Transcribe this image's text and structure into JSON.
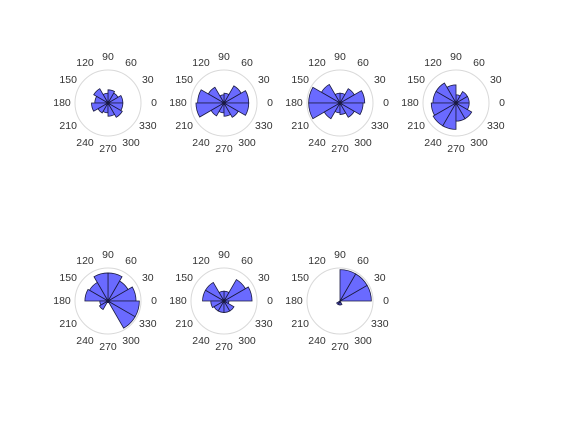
{
  "colors": {
    "sector_fill": "#6a6aff",
    "sector_stroke": "#1a1a40",
    "grid_circle": "#d9d9d9",
    "tick_text": "#333333",
    "background": "#ffffff"
  },
  "chart_data": [
    {
      "type": "polar-rose",
      "title": "",
      "angle_unit": "degrees",
      "angle_ticks": [
        "0",
        "30",
        "60",
        "90",
        "120",
        "150",
        "180",
        "210",
        "240",
        "270",
        "300",
        "330"
      ],
      "bin_width": 30,
      "r_max": 1.0,
      "grid": true,
      "bins": [
        {
          "start": 0,
          "end": 30,
          "r": 0.45
        },
        {
          "start": 30,
          "end": 60,
          "r": 0.35
        },
        {
          "start": 60,
          "end": 90,
          "r": 0.4
        },
        {
          "start": 90,
          "end": 120,
          "r": 0.3
        },
        {
          "start": 120,
          "end": 150,
          "r": 0.5
        },
        {
          "start": 150,
          "end": 180,
          "r": 0.4
        },
        {
          "start": 180,
          "end": 210,
          "r": 0.5
        },
        {
          "start": 210,
          "end": 240,
          "r": 0.35
        },
        {
          "start": 240,
          "end": 270,
          "r": 0.3
        },
        {
          "start": 270,
          "end": 300,
          "r": 0.4
        },
        {
          "start": 300,
          "end": 330,
          "r": 0.5
        },
        {
          "start": 330,
          "end": 360,
          "r": 0.45
        }
      ]
    },
    {
      "type": "polar-rose",
      "title": "",
      "angle_unit": "degrees",
      "angle_ticks": [
        "0",
        "30",
        "60",
        "90",
        "120",
        "150",
        "180",
        "210",
        "240",
        "270",
        "300",
        "330"
      ],
      "bin_width": 30,
      "r_max": 1.0,
      "grid": true,
      "bins": [
        {
          "start": 0,
          "end": 30,
          "r": 0.75
        },
        {
          "start": 30,
          "end": 60,
          "r": 0.6
        },
        {
          "start": 60,
          "end": 90,
          "r": 0.3
        },
        {
          "start": 90,
          "end": 120,
          "r": 0.25
        },
        {
          "start": 120,
          "end": 150,
          "r": 0.55
        },
        {
          "start": 150,
          "end": 180,
          "r": 0.8
        },
        {
          "start": 180,
          "end": 210,
          "r": 0.85
        },
        {
          "start": 210,
          "end": 240,
          "r": 0.45
        },
        {
          "start": 240,
          "end": 270,
          "r": 0.3
        },
        {
          "start": 270,
          "end": 300,
          "r": 0.4
        },
        {
          "start": 300,
          "end": 330,
          "r": 0.5
        },
        {
          "start": 330,
          "end": 360,
          "r": 0.75
        }
      ]
    },
    {
      "type": "polar-rose",
      "title": "",
      "angle_unit": "degrees",
      "angle_ticks": [
        "0",
        "30",
        "60",
        "90",
        "120",
        "150",
        "180",
        "210",
        "240",
        "270",
        "300",
        "330"
      ],
      "bin_width": 30,
      "r_max": 1.0,
      "grid": true,
      "bins": [
        {
          "start": 0,
          "end": 30,
          "r": 0.75
        },
        {
          "start": 30,
          "end": 60,
          "r": 0.5
        },
        {
          "start": 60,
          "end": 90,
          "r": 0.3
        },
        {
          "start": 90,
          "end": 120,
          "r": 0.3
        },
        {
          "start": 120,
          "end": 150,
          "r": 0.65
        },
        {
          "start": 150,
          "end": 180,
          "r": 0.95
        },
        {
          "start": 180,
          "end": 210,
          "r": 0.95
        },
        {
          "start": 210,
          "end": 240,
          "r": 0.55
        },
        {
          "start": 240,
          "end": 270,
          "r": 0.3
        },
        {
          "start": 270,
          "end": 300,
          "r": 0.35
        },
        {
          "start": 300,
          "end": 330,
          "r": 0.5
        },
        {
          "start": 330,
          "end": 360,
          "r": 0.7
        }
      ]
    },
    {
      "type": "polar-rose",
      "title": "",
      "angle_unit": "degrees",
      "angle_ticks": [
        "0",
        "30",
        "60",
        "90",
        "120",
        "150",
        "180",
        "210",
        "240",
        "270",
        "300",
        "330"
      ],
      "bin_width": 30,
      "r_max": 1.0,
      "grid": true,
      "bins": [
        {
          "start": 0,
          "end": 30,
          "r": 0.4
        },
        {
          "start": 30,
          "end": 60,
          "r": 0.4
        },
        {
          "start": 60,
          "end": 90,
          "r": 0.25
        },
        {
          "start": 90,
          "end": 120,
          "r": 0.55
        },
        {
          "start": 120,
          "end": 150,
          "r": 0.7
        },
        {
          "start": 150,
          "end": 180,
          "r": 0.7
        },
        {
          "start": 180,
          "end": 210,
          "r": 0.75
        },
        {
          "start": 210,
          "end": 240,
          "r": 0.8
        },
        {
          "start": 240,
          "end": 270,
          "r": 0.8
        },
        {
          "start": 270,
          "end": 300,
          "r": 0.55
        },
        {
          "start": 300,
          "end": 330,
          "r": 0.55
        },
        {
          "start": 330,
          "end": 360,
          "r": 0.4
        }
      ]
    },
    {
      "type": "polar-rose",
      "title": "",
      "angle_unit": "degrees",
      "angle_ticks": [
        "0",
        "30",
        "60",
        "90",
        "120",
        "150",
        "180",
        "210",
        "240",
        "270",
        "300",
        "330"
      ],
      "bin_width": 30,
      "r_max": 1.0,
      "grid": true,
      "bins": [
        {
          "start": 0,
          "end": 30,
          "r": 0.85
        },
        {
          "start": 30,
          "end": 60,
          "r": 0.7
        },
        {
          "start": 60,
          "end": 90,
          "r": 0.85
        },
        {
          "start": 90,
          "end": 120,
          "r": 0.85
        },
        {
          "start": 120,
          "end": 150,
          "r": 0.65
        },
        {
          "start": 150,
          "end": 180,
          "r": 0.7
        },
        {
          "start": 180,
          "end": 210,
          "r": 0.25
        },
        {
          "start": 210,
          "end": 240,
          "r": 0.3
        },
        {
          "start": 240,
          "end": 270,
          "r": 0.05
        },
        {
          "start": 270,
          "end": 300,
          "r": 0.05
        },
        {
          "start": 300,
          "end": 330,
          "r": 0.95
        },
        {
          "start": 330,
          "end": 360,
          "r": 0.95
        }
      ]
    },
    {
      "type": "polar-rose",
      "title": "",
      "angle_unit": "degrees",
      "angle_ticks": [
        "0",
        "30",
        "60",
        "90",
        "120",
        "150",
        "180",
        "210",
        "240",
        "270",
        "300",
        "330"
      ],
      "bin_width": 30,
      "r_max": 1.0,
      "grid": true,
      "bins": [
        {
          "start": 0,
          "end": 30,
          "r": 0.85
        },
        {
          "start": 30,
          "end": 60,
          "r": 0.75
        },
        {
          "start": 60,
          "end": 90,
          "r": 0.3
        },
        {
          "start": 90,
          "end": 120,
          "r": 0.3
        },
        {
          "start": 120,
          "end": 150,
          "r": 0.65
        },
        {
          "start": 150,
          "end": 180,
          "r": 0.65
        },
        {
          "start": 180,
          "end": 210,
          "r": 0.4
        },
        {
          "start": 210,
          "end": 240,
          "r": 0.35
        },
        {
          "start": 240,
          "end": 270,
          "r": 0.35
        },
        {
          "start": 270,
          "end": 300,
          "r": 0.35
        },
        {
          "start": 300,
          "end": 330,
          "r": 0.35
        },
        {
          "start": 330,
          "end": 360,
          "r": 0.15
        }
      ]
    },
    {
      "type": "polar-rose",
      "title": "",
      "angle_unit": "degrees",
      "angle_ticks": [
        "0",
        "30",
        "60",
        "90",
        "120",
        "150",
        "180",
        "210",
        "240",
        "270",
        "300",
        "330"
      ],
      "bin_width": 30,
      "r_max": 1.0,
      "grid": true,
      "bins": [
        {
          "start": 0,
          "end": 30,
          "r": 0.95
        },
        {
          "start": 30,
          "end": 60,
          "r": 0.95
        },
        {
          "start": 60,
          "end": 90,
          "r": 0.95
        },
        {
          "start": 90,
          "end": 120,
          "r": 0.0
        },
        {
          "start": 120,
          "end": 150,
          "r": 0.0
        },
        {
          "start": 150,
          "end": 180,
          "r": 0.0
        },
        {
          "start": 180,
          "end": 210,
          "r": 0.0
        },
        {
          "start": 210,
          "end": 240,
          "r": 0.12
        },
        {
          "start": 240,
          "end": 270,
          "r": 0.12
        },
        {
          "start": 270,
          "end": 300,
          "r": 0.12
        },
        {
          "start": 300,
          "end": 330,
          "r": 0.0
        },
        {
          "start": 330,
          "end": 360,
          "r": 0.0
        }
      ]
    }
  ]
}
